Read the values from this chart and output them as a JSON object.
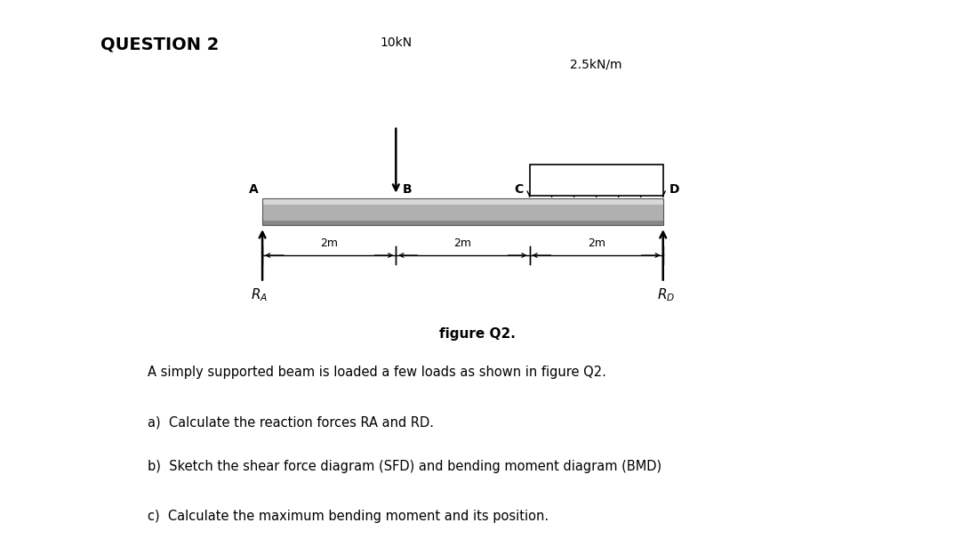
{
  "title": "QUESTION 2",
  "load_label": "10kN",
  "udl_label": "2.5kN/m",
  "figure_label": "figure Q2.",
  "point_labels": [
    "A",
    "B",
    "C",
    "D"
  ],
  "dim_labels": [
    "2m",
    "2m",
    "2m"
  ],
  "questions": [
    "A simply supported beam is loaded a few loads as shown in figure Q2.",
    "a)  Calculate the reaction forces RA and RD.",
    "b)  Sketch the shear force diagram (SFD) and bending moment diagram (BMD)",
    "c)  Calculate the maximum bending moment and its position."
  ],
  "bg_color": "#ffffff",
  "text_color": "#000000",
  "beam_gray": "#b0b0b0",
  "beam_light": "#d8d8d8",
  "beam_dark": "#888888"
}
